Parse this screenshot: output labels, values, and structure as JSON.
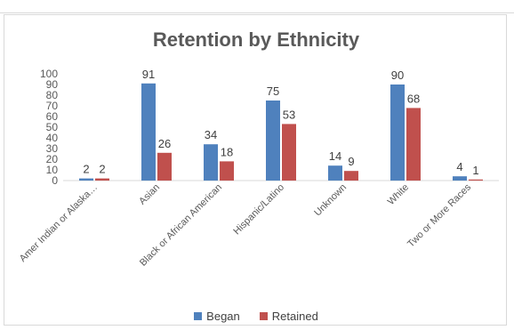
{
  "chart_data": {
    "type": "bar",
    "title": "Retention by Ethnicity",
    "categories": [
      "Amer Indian or Alaska…",
      "Asian",
      "Black or African American",
      "Hispanic/Latino",
      "Unknown",
      "White",
      "Two or More Races"
    ],
    "series": [
      {
        "name": "Began",
        "color": "#4f81bd",
        "values": [
          2,
          91,
          34,
          75,
          14,
          90,
          4
        ]
      },
      {
        "name": "Retained",
        "color": "#c0504d",
        "values": [
          2,
          26,
          18,
          53,
          9,
          68,
          1
        ]
      }
    ],
    "ylim": [
      0,
      100
    ],
    "yticks": [
      0,
      10,
      20,
      30,
      40,
      50,
      60,
      70,
      80,
      90,
      100
    ],
    "legend_position": "bottom",
    "grid": false,
    "data_labels": true
  }
}
